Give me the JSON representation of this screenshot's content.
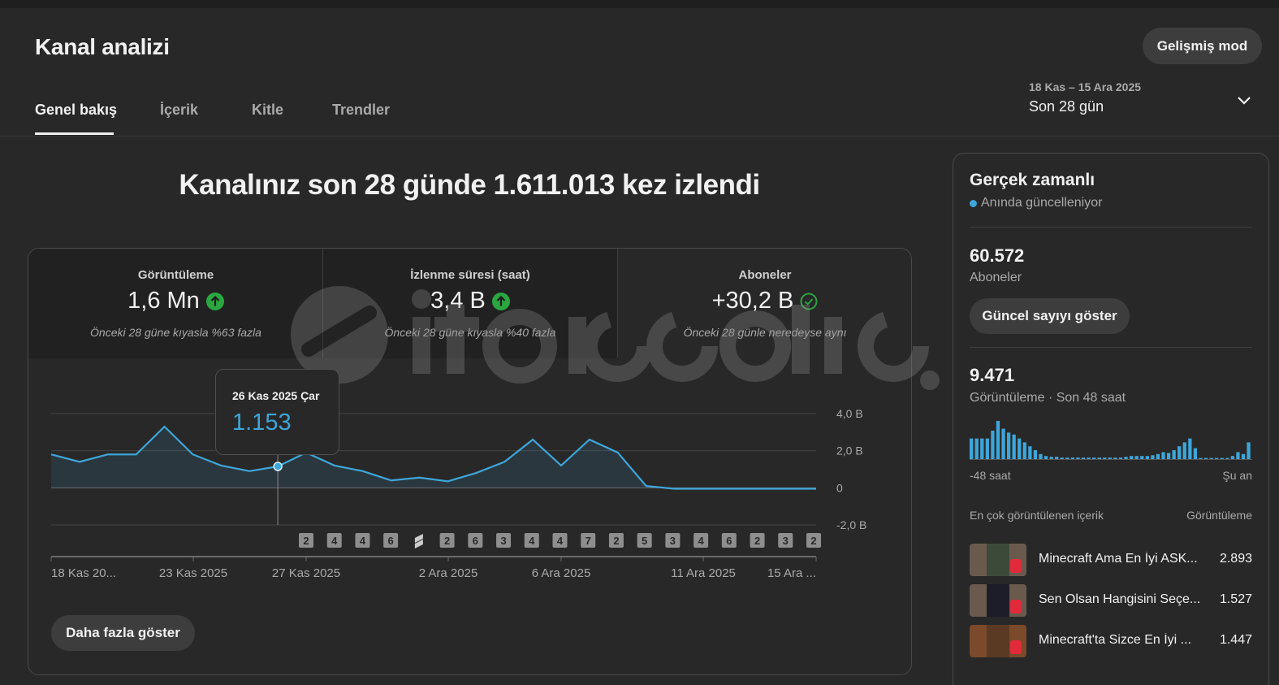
{
  "header": {
    "title": "Kanal analizi",
    "advanced_mode": "Gelişmiş mod",
    "tabs": [
      {
        "label": "Genel bakış",
        "active": true
      },
      {
        "label": "İçerik",
        "active": false
      },
      {
        "label": "Kitle",
        "active": false
      },
      {
        "label": "Trendler",
        "active": false
      }
    ],
    "date_range": "18 Kas – 15 Ara 2025",
    "period": "Son 28 gün"
  },
  "main": {
    "headline": "Kanalınız son 28 günde 1.611.013 kez izlendi",
    "metrics": [
      {
        "title": "Görüntüleme",
        "value": "1,6 Mn",
        "icon": "arrow-up-green-icon",
        "note": "Önceki 28 güne kıyasla %63 fazla"
      },
      {
        "title": "İzlenme süresi (saat)",
        "value": "3,4 B",
        "icon": "arrow-up-green-icon",
        "note": "Önceki 28 güne kıyasla %40 fazla"
      },
      {
        "title": "Aboneler",
        "value": "+30,2 B",
        "icon": "check-circle-icon",
        "note": "Önceki 28 günle neredeyse aynı"
      }
    ],
    "more_button": "Daha fazla göster",
    "tooltip": {
      "date": "26 Kas 2025 Çar",
      "value": "1.153"
    }
  },
  "chart_data": {
    "type": "area",
    "x": [
      "18 Kas",
      "19 Kas",
      "20 Kas",
      "21 Kas",
      "22 Kas",
      "23 Kas",
      "24 Kas",
      "25 Kas",
      "26 Kas",
      "27 Kas",
      "28 Kas",
      "29 Kas",
      "30 Kas",
      "1 Ara",
      "2 Ara",
      "3 Ara",
      "4 Ara",
      "5 Ara",
      "6 Ara",
      "7 Ara",
      "8 Ara",
      "9 Ara",
      "10 Ara",
      "11 Ara",
      "12 Ara",
      "13 Ara",
      "14 Ara",
      "15 Ara"
    ],
    "values": [
      1.8,
      1.4,
      1.8,
      1.8,
      3.3,
      1.8,
      1.2,
      0.9,
      1.153,
      1.9,
      1.2,
      0.9,
      0.4,
      0.55,
      0.35,
      0.8,
      1.4,
      2.6,
      1.2,
      2.6,
      1.9,
      0.1,
      -0.05,
      -0.05,
      -0.05,
      -0.05,
      -0.05,
      -0.05
    ],
    "yticks": [
      "4,0 B",
      "2,0 B",
      "0",
      "-2,0 B"
    ],
    "ylim": [
      -2.0,
      4.0
    ],
    "xtick_labels": [
      "18 Kas 20...",
      "23 Kas 2025",
      "27 Kas 2025",
      "2 Ara 2025",
      "6 Ara 2025",
      "11 Ara 2025",
      "15 Ara ..."
    ],
    "markers": [
      "2",
      "4",
      "4",
      "6",
      "shorts",
      "2",
      "6",
      "3",
      "4",
      "4",
      "7",
      "2",
      "5",
      "3",
      "4",
      "6",
      "2",
      "3",
      "2"
    ],
    "line_color": "#3ea6d9",
    "highlight_index": 8,
    "grid": true
  },
  "realtime": {
    "title": "Gerçek zamanlı",
    "live_label": "Anında güncelleniyor",
    "subscribers_value": "60.572",
    "subscribers_label": "Aboneler",
    "show_count_button": "Güncel sayıyı göster",
    "views_value": "9.471",
    "views_label": "Görüntüleme · Son 48 saat",
    "axis_left": "-48 saat",
    "axis_right": "Şu an",
    "bars": [
      0.55,
      0.55,
      0.55,
      0.55,
      0.75,
      1.0,
      0.8,
      0.7,
      0.65,
      0.55,
      0.45,
      0.35,
      0.25,
      0.15,
      0.1,
      0.08,
      0.08,
      0.06,
      0.06,
      0.06,
      0.06,
      0.06,
      0.06,
      0.06,
      0.06,
      0.06,
      0.06,
      0.06,
      0.06,
      0.08,
      0.1,
      0.1,
      0.1,
      0.1,
      0.12,
      0.15,
      0.2,
      0.18,
      0.25,
      0.35,
      0.45,
      0.55,
      0.3,
      0.05,
      0.05,
      0.05,
      0.05,
      0.05,
      0.05,
      0.1,
      0.2,
      0.15,
      0.45
    ],
    "bar_color": "#3ea6d9",
    "top_content_label": "En çok görüntülenen içerik",
    "top_content_col": "Görüntüleme",
    "top_content": [
      {
        "title": "Minecraft Ama En İyi ASK...",
        "views": "2.893"
      },
      {
        "title": "Sen Olsan Hangisini Seçe...",
        "views": "1.527"
      },
      {
        "title": "Minecraft'ta Sizce En İyi ...",
        "views": "1.447"
      }
    ]
  }
}
